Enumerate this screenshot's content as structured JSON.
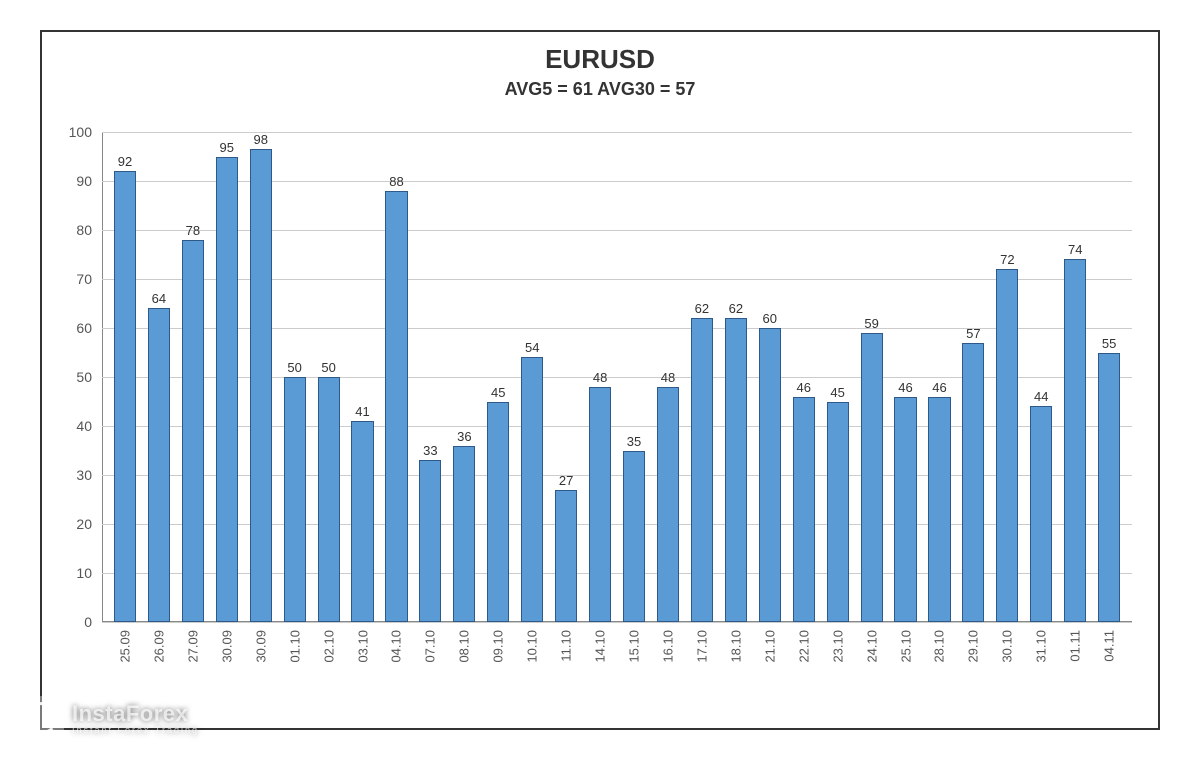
{
  "chart": {
    "type": "bar",
    "title": "EURUSD",
    "title_fontsize": 26,
    "title_weight": "bold",
    "title_color": "#333333",
    "subtitle": "AVG5 = 61 AVG30 = 57",
    "subtitle_fontsize": 18,
    "subtitle_weight": "bold",
    "subtitle_color": "#333333",
    "background_color": "#ffffff",
    "border_color": "#333333",
    "bar_color": "#5b9bd5",
    "bar_border_color": "#2e5a8a",
    "grid_color": "#cccccc",
    "axis_color": "#888888",
    "y_axis": {
      "min": 0,
      "max": 100,
      "tick_step": 10,
      "ticks": [
        0,
        10,
        20,
        30,
        40,
        50,
        60,
        70,
        80,
        90,
        100
      ],
      "label_fontsize": 14,
      "label_color": "#555555"
    },
    "x_axis": {
      "label_fontsize": 13,
      "label_color": "#555555",
      "rotation": -90
    },
    "value_label_fontsize": 13,
    "value_label_color": "#333333",
    "bar_width_ratio": 0.74,
    "categories": [
      "25.09",
      "26.09",
      "27.09",
      "30.09",
      "30.09",
      "01.10",
      "02.10",
      "03.10",
      "04.10",
      "07.10",
      "08.10",
      "09.10",
      "10.10",
      "11.10",
      "14.10",
      "15.10",
      "16.10",
      "17.10",
      "18.10",
      "21.10",
      "22.10",
      "23.10",
      "24.10",
      "25.10",
      "28.10",
      "29.10",
      "30.10",
      "31.10",
      "01.11",
      "04.11"
    ],
    "values": [
      92,
      64,
      78,
      95,
      98,
      50,
      50,
      41,
      88,
      33,
      36,
      45,
      54,
      27,
      48,
      35,
      48,
      62,
      62,
      60,
      46,
      45,
      59,
      46,
      46,
      57,
      72,
      44,
      74,
      55
    ]
  },
  "watermark": {
    "brand": "InstaForex",
    "tagline": "Instant Forex Trading",
    "text_color": "rgba(255,255,255,0.7)",
    "main_fontsize": 22,
    "sub_fontsize": 9
  }
}
